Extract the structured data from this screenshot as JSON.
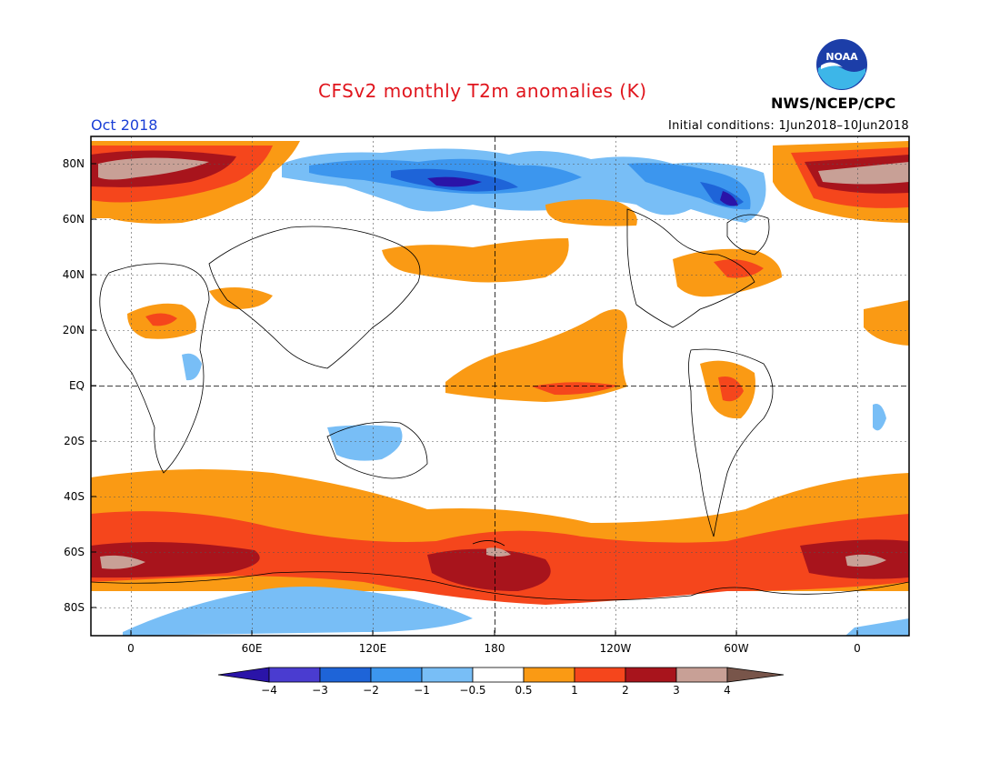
{
  "header": {
    "title": "CFSv2 monthly T2m anomalies (K)",
    "month": "Oct 2018",
    "initial_conditions": "Initial conditions: 1Jun2018–10Jun2018",
    "agency": "NWS/NCEP/CPC",
    "logo_text": "NOAA"
  },
  "axes": {
    "lat_labels": [
      "80N",
      "60N",
      "40N",
      "20N",
      "EQ",
      "20S",
      "40S",
      "60S",
      "80S"
    ],
    "lon_labels": [
      "0",
      "60E",
      "120E",
      "180",
      "120W",
      "60W",
      "0"
    ]
  },
  "colorbar": {
    "tick_labels": [
      "−4",
      "−3",
      "−2",
      "−1",
      "−0.5",
      "0.5",
      "1",
      "2",
      "3",
      "4"
    ],
    "colors": [
      "#2a14a8",
      "#4a3cd0",
      "#1e64d8",
      "#3c96ee",
      "#78bef6",
      "#ffffff",
      "#fa9a14",
      "#f5461c",
      "#a8141c",
      "#c8a096",
      "#78554a"
    ]
  },
  "colors": {
    "title": "#e0141c",
    "month": "#1a3fd6",
    "blue_strong": "#1e64d8",
    "blue_mid": "#3c96ee",
    "blue_light": "#78bef6",
    "orange": "#fa9a14",
    "red": "#f5461c",
    "darkred": "#a8141c",
    "tan": "#c8a096"
  }
}
